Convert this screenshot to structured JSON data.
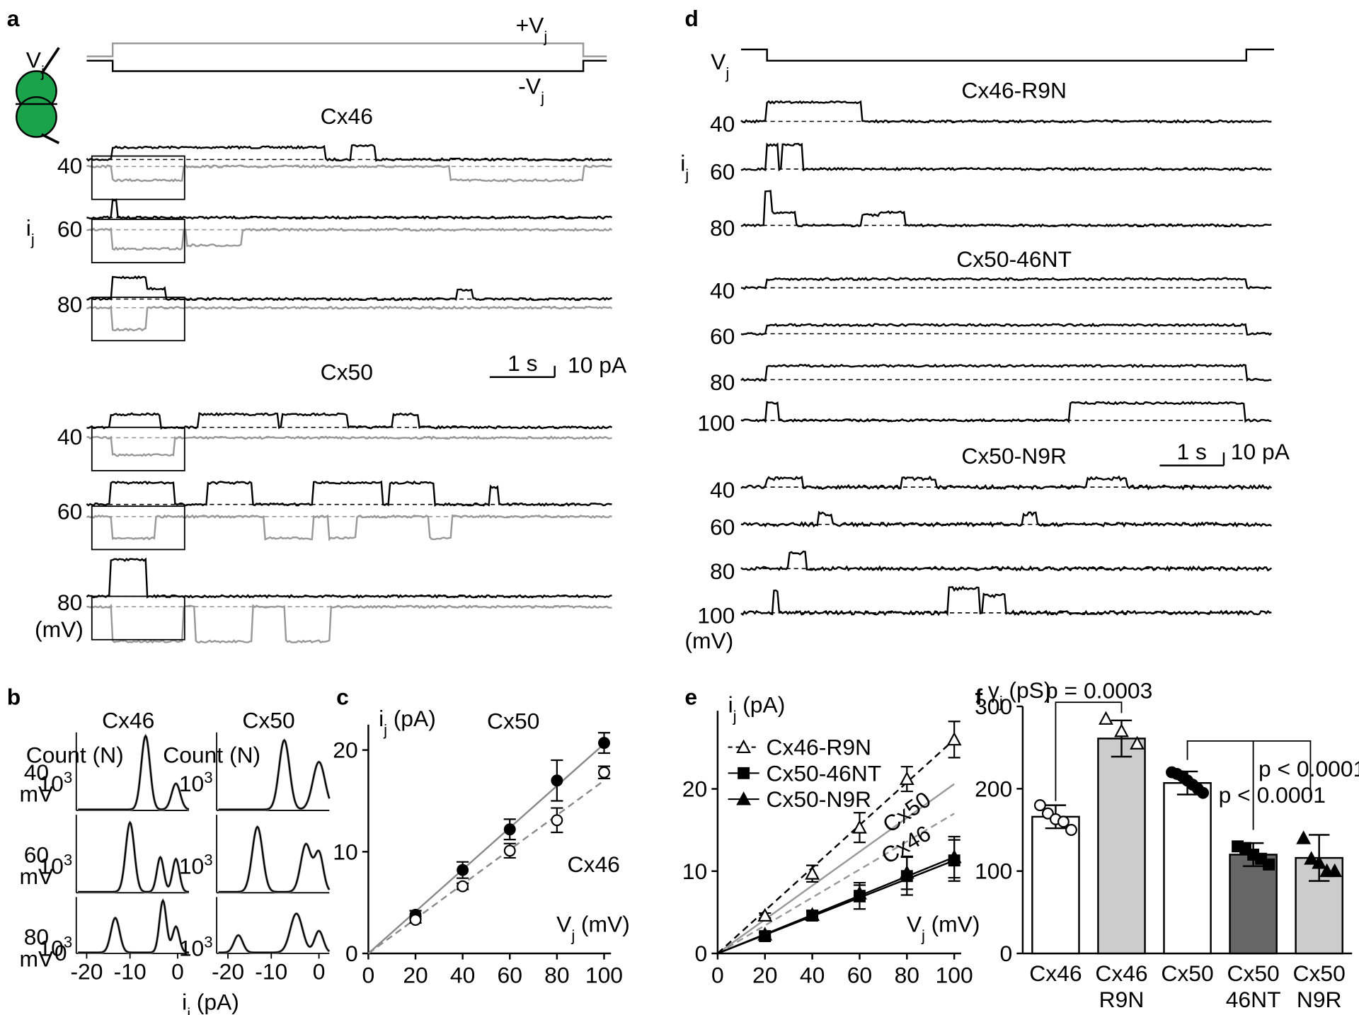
{
  "panel_a": {
    "label": "a",
    "vj": {
      "v": "V",
      "sub": "j"
    },
    "plus_vj": {
      "v": "+V",
      "sub": "j"
    },
    "minus_vj": {
      "v": "-V",
      "sub": "j"
    },
    "ij": {
      "v": "i",
      "sub": "j"
    },
    "unit": "(mV)",
    "scale_time": "1 s",
    "scale_current": "10 pA",
    "groups": [
      {
        "title": "Cx46",
        "voltages": [
          40,
          60,
          80
        ]
      },
      {
        "title": "Cx50",
        "voltages": [
          40,
          60,
          80
        ]
      }
    ]
  },
  "panel_d": {
    "label": "d",
    "vj": {
      "v": "V",
      "sub": "j"
    },
    "ij": {
      "v": "i",
      "sub": "j"
    },
    "unit": "(mV)",
    "scale_time": "1 s",
    "scale_current": "10 pA",
    "groups": [
      {
        "title": "Cx46-R9N",
        "voltages": [
          40,
          60,
          80
        ]
      },
      {
        "title": "Cx50-46NT",
        "voltages": [
          40,
          60,
          80,
          100
        ]
      },
      {
        "title": "Cx50-N9R",
        "voltages": [
          40,
          60,
          80,
          100
        ]
      }
    ]
  },
  "panel_b": {
    "label": "b",
    "columns": [
      "Cx46",
      "Cx50"
    ],
    "count_label": "Count (N)",
    "rows": [
      {
        "voltage": 40,
        "unit": "mV"
      },
      {
        "voltage": 60,
        "unit": "mV"
      },
      {
        "voltage": 80,
        "unit": "mV"
      }
    ],
    "ytick": {
      "base": "10",
      "exp": "3"
    },
    "y_zero": 0,
    "xticks": [
      -20,
      -10,
      0
    ],
    "x_label": {
      "v": "i",
      "sub": "j",
      "unit": "(pA)"
    }
  },
  "chart_data": [
    {
      "type": "scatter",
      "label": "c",
      "x": [
        20,
        40,
        60,
        80,
        100
      ],
      "xlim": [
        0,
        100
      ],
      "xticks": [
        0,
        20,
        40,
        60,
        80,
        100
      ],
      "ylim": [
        0,
        22.5
      ],
      "yticks": [
        0,
        10,
        20
      ],
      "y_label": {
        "v": "i",
        "sub": "j",
        "unit": "(pA)"
      },
      "x_label": {
        "v": "V",
        "sub": "j",
        "unit": "(mV)"
      },
      "series": [
        {
          "name": "Cx50",
          "marker": "circle",
          "filled": true,
          "values": [
            3.8,
            8.2,
            12.2,
            17,
            20.7
          ],
          "errors": [
            0.4,
            0.8,
            1,
            2,
            1
          ],
          "fit_x": [
            0,
            100
          ],
          "fit": [
            0,
            20.6
          ],
          "fit_color": "#8a8a8a",
          "fit_dash": false
        },
        {
          "name": "Cx46",
          "marker": "circle",
          "filled": false,
          "values": [
            3.3,
            6.6,
            10.1,
            13.1,
            17.8
          ],
          "errors": [
            0.3,
            0.3,
            0.7,
            1.2,
            0.6
          ],
          "fit_x": [
            0,
            100
          ],
          "fit": [
            0,
            17
          ],
          "fit_color": "#8a8a8a",
          "fit_dash": true
        }
      ]
    },
    {
      "type": "scatter",
      "label": "e",
      "x": [
        20,
        40,
        60,
        80,
        100
      ],
      "xlim": [
        0,
        100
      ],
      "xticks": [
        0,
        20,
        40,
        60,
        80,
        100
      ],
      "ylim": [
        0,
        29.5
      ],
      "yticks": [
        0,
        10,
        20
      ],
      "y_label": {
        "v": "i",
        "sub": "j",
        "unit": "(pA)"
      },
      "x_label": {
        "v": "V",
        "sub": "j",
        "unit": "(mV)"
      },
      "legend": "upper left",
      "series": [
        {
          "name": "Cx46-R9N",
          "marker": "triangle",
          "filled": false,
          "values": [
            4.6,
            9.7,
            15.3,
            21.2,
            26
          ],
          "errors": [
            0.3,
            1,
            1.8,
            1.5,
            2.2
          ],
          "fit_x": [
            0,
            100
          ],
          "fit": [
            0,
            26
          ],
          "fit_color": "#000",
          "fit_dash": true
        },
        {
          "name": "Cx50-46NT",
          "marker": "square",
          "filled": true,
          "values": [
            2.1,
            4.6,
            7,
            9.4,
            11.3
          ],
          "errors": [
            0.4,
            0.5,
            1.6,
            2.3,
            2.5
          ],
          "fit_x": [
            0,
            100
          ],
          "fit": [
            0,
            11.3
          ],
          "fit_color": "#000",
          "fit_dash": false
        },
        {
          "name": "Cx50-N9R",
          "marker": "triangle",
          "filled": true,
          "values": [
            2.3,
            4.7,
            7.3,
            9.8,
            11.7
          ],
          "errors": [
            0.3,
            0.5,
            1,
            2,
            2.5
          ],
          "fit_x": [
            0,
            100
          ],
          "fit": [
            0,
            11.7
          ],
          "fit_color": "#000",
          "fit_dash": false
        }
      ],
      "reference_lines": [
        {
          "name": "Cx50",
          "x": [
            0,
            100
          ],
          "values": [
            0,
            20.6
          ],
          "color": "#999",
          "dash": false
        },
        {
          "name": "Cx46",
          "x": [
            0,
            100
          ],
          "values": [
            0,
            17
          ],
          "color": "#999",
          "dash": true
        }
      ]
    },
    {
      "type": "bar",
      "label": "f",
      "y_label": {
        "v": "γ",
        "sub": "j",
        "unit": "(pS)"
      },
      "categories": [
        [
          "Cx46"
        ],
        [
          "Cx46",
          "R9N"
        ],
        [
          "Cx50"
        ],
        [
          "Cx50",
          "46NT"
        ],
        [
          "Cx50",
          "N9R"
        ]
      ],
      "values": [
        166,
        261,
        207,
        120,
        116
      ],
      "errors": [
        14,
        22,
        14,
        14,
        28
      ],
      "colors": [
        "#ffffff",
        "#cccccc",
        "#ffffff",
        "#666666",
        "#cccccc"
      ],
      "markers": [
        "open-circle",
        "open-triangle",
        "circle",
        "square",
        "triangle"
      ],
      "points": [
        [
          180,
          170,
          163,
          160,
          150
        ],
        [
          285,
          270,
          255
        ],
        [
          220,
          218,
          215,
          210,
          205,
          200,
          195
        ],
        [
          130,
          128,
          120,
          115,
          108
        ],
        [
          140,
          115,
          110,
          100,
          100
        ]
      ],
      "ylim": [
        0,
        300
      ],
      "yticks": [
        0,
        100,
        200,
        300
      ],
      "annotations": [
        "p = 0.0003",
        "p < 0.0001",
        "p < 0.0001"
      ]
    }
  ]
}
